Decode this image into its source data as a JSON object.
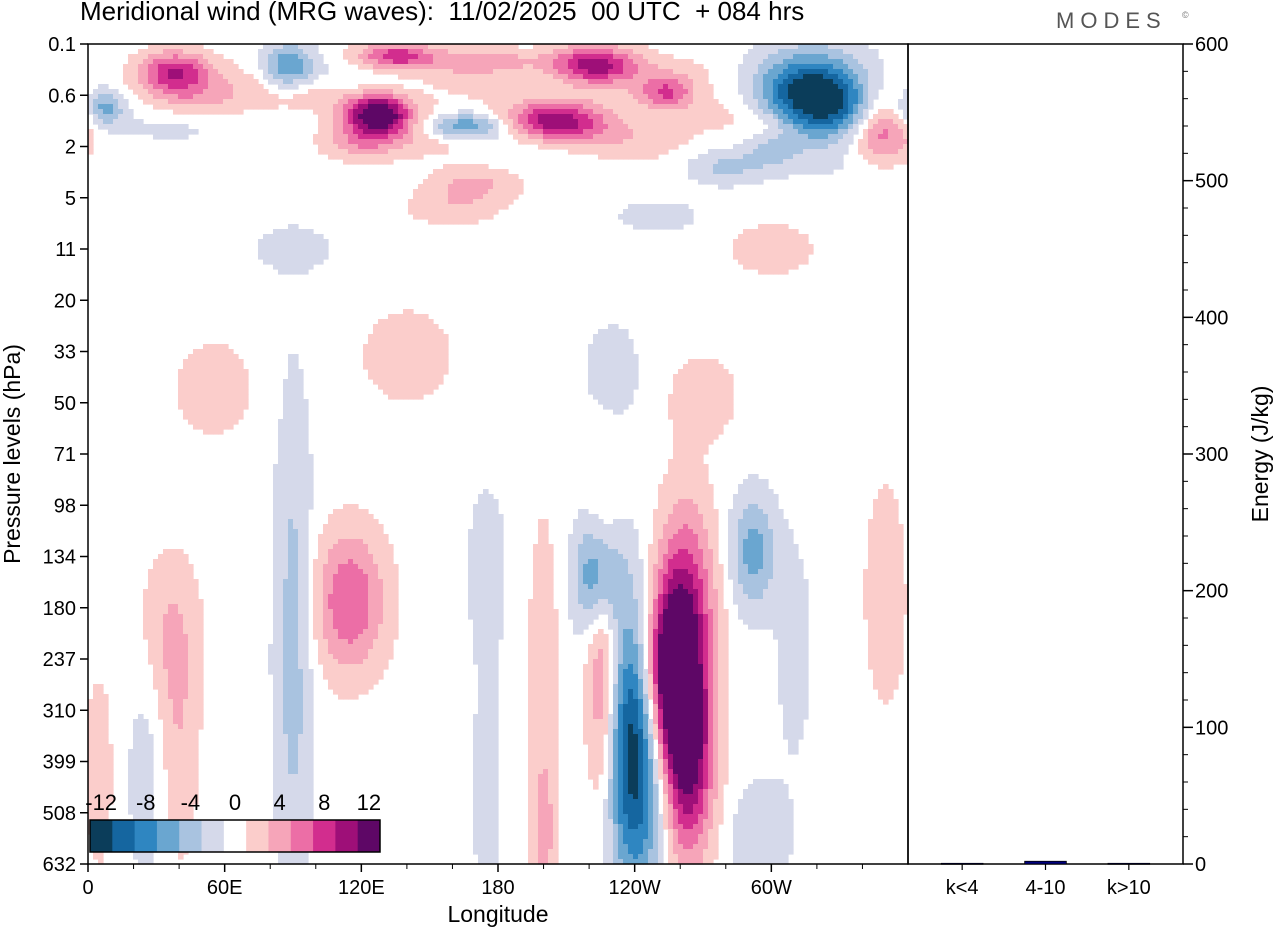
{
  "title": "Meridional wind (MRG waves):  11/02/2025  00 UTC  + 084 hrs",
  "brand": "MODES",
  "brand_mark": "©",
  "colors": {
    "scale": [
      "#0b3d5a",
      "#1566a0",
      "#2f86c1",
      "#6aa6d0",
      "#a9c3e0",
      "#d5d9ea",
      "#ffffff",
      "#fbcdcb",
      "#f6a5b9",
      "#ec6ea6",
      "#d22d8e",
      "#9e0f78",
      "#5e0766"
    ]
  },
  "chart_data": [
    {
      "type": "heatmap",
      "title": "Meridional wind (MRG waves):  11/02/2025  00 UTC  + 084 hrs",
      "xlabel": "Longitude",
      "ylabel": "Pressure levels (hPa)",
      "x_ticks": [
        "0",
        "60E",
        "120E",
        "180",
        "120W",
        "60W"
      ],
      "x_tick_lons": [
        0,
        60,
        120,
        180,
        240,
        300
      ],
      "x_range": [
        0,
        360
      ],
      "y_ticks": [
        "0.1",
        "0.6",
        "2",
        "5",
        "11",
        "20",
        "33",
        "50",
        "71",
        "98",
        "134",
        "180",
        "237",
        "310",
        "399",
        "508",
        "632"
      ],
      "colorbar": {
        "levels": [
          -12,
          -10,
          -8,
          -6,
          -4,
          -2,
          0,
          2,
          4,
          6,
          8,
          10,
          12
        ],
        "labels": [
          "-12",
          "-8",
          "-4",
          "0",
          "4",
          "8",
          "12"
        ]
      },
      "features": [
        {
          "lon": 240,
          "level": 0.86,
          "value": -13,
          "sx": 9,
          "sy": 0.12
        },
        {
          "lon": 263,
          "level": 0.86,
          "value": 13,
          "sx": 8,
          "sy": 0.09
        },
        {
          "lon": 262,
          "level": 0.69,
          "value": 9,
          "sx": 9,
          "sy": 0.09
        },
        {
          "lon": 253,
          "level": 0.77,
          "value": 11,
          "sx": 7,
          "sy": 0.07
        },
        {
          "lon": 226,
          "level": 0.76,
          "value": 7,
          "sx": 5,
          "sy": 0.13
        },
        {
          "lon": 224,
          "level": 0.65,
          "value": -9,
          "sx": 7,
          "sy": 0.05
        },
        {
          "lon": 292,
          "level": 0.62,
          "value": -6,
          "sx": 7,
          "sy": 0.05
        },
        {
          "lon": 115,
          "level": 0.68,
          "value": 7,
          "sx": 11,
          "sy": 0.06
        },
        {
          "lon": 90,
          "level": 0.73,
          "value": -4,
          "sx": 6,
          "sy": 0.22
        },
        {
          "lon": 175,
          "level": 0.64,
          "value": -2.5,
          "sx": 6,
          "sy": 0.07
        },
        {
          "lon": 200,
          "level": 0.78,
          "value": 2.5,
          "sx": 5,
          "sy": 0.15
        },
        {
          "lon": 200,
          "level": 0.97,
          "value": 3,
          "sx": 4,
          "sy": 0.06
        },
        {
          "lon": 295,
          "level": 0.97,
          "value": -3,
          "sx": 9,
          "sy": 0.05
        },
        {
          "lon": 310,
          "level": 0.74,
          "value": -2,
          "sx": 6,
          "sy": 0.1
        },
        {
          "lon": 350,
          "level": 0.67,
          "value": 3,
          "sx": 6,
          "sy": 0.09
        },
        {
          "lon": 35,
          "level": 0.72,
          "value": 3,
          "sx": 10,
          "sy": 0.07
        },
        {
          "lon": 40,
          "level": 0.86,
          "value": 2.5,
          "sx": 6,
          "sy": 0.1
        },
        {
          "lon": 25,
          "level": 0.88,
          "value": -2,
          "sx": 6,
          "sy": 0.12
        },
        {
          "lon": 5,
          "level": 0.89,
          "value": 2.5,
          "sx": 4,
          "sy": 0.08
        },
        {
          "lon": 175,
          "level": 0.91,
          "value": -2,
          "sx": 5,
          "sy": 0.12
        },
        {
          "lon": 140,
          "level": 0.38,
          "value": 2.5,
          "sx": 14,
          "sy": 0.04
        },
        {
          "lon": 270,
          "level": 0.43,
          "value": 2,
          "sx": 12,
          "sy": 0.04
        },
        {
          "lon": 230,
          "level": 0.4,
          "value": -2,
          "sx": 10,
          "sy": 0.05
        },
        {
          "lon": 55,
          "level": 0.42,
          "value": 1.8,
          "sx": 15,
          "sy": 0.05
        },
        {
          "lon": 120,
          "level": 0.12,
          "value": 4,
          "sx": 12,
          "sy": 0.015
        },
        {
          "lon": 100,
          "level": 0.06,
          "value": 2.5,
          "sx": 12,
          "sy": 0.015
        },
        {
          "lon": 45,
          "level": 0.07,
          "value": 2.5,
          "sx": 14,
          "sy": 0.015
        },
        {
          "lon": 175,
          "level": 0.02,
          "value": 3.5,
          "sx": 16,
          "sy": 0.01
        },
        {
          "lon": 260,
          "level": 0.06,
          "value": -3,
          "sx": 12,
          "sy": 0.015
        },
        {
          "lon": 300,
          "level": 0.1,
          "value": 2.5,
          "sx": 10,
          "sy": 0.015
        },
        {
          "lon": 280,
          "level": 0.15,
          "value": -3.5,
          "sx": 12,
          "sy": 0.015
        },
        {
          "lon": 170,
          "level": 0.17,
          "value": 3.5,
          "sx": 14,
          "sy": 0.015
        },
        {
          "lon": 90,
          "level": 0.25,
          "value": -2,
          "sx": 14,
          "sy": 0.02
        },
        {
          "lon": 160,
          "level": 0.2,
          "value": 2.5,
          "sx": 14,
          "sy": 0.015
        },
        {
          "lon": 250,
          "level": 0.21,
          "value": -2,
          "sx": 14,
          "sy": 0.015
        },
        {
          "lon": 300,
          "level": 0.25,
          "value": 3,
          "sx": 12,
          "sy": 0.02
        }
      ],
      "upper_features": [
        {
          "lon": 38,
          "level": 0.035,
          "value": 9,
          "sx": 11,
          "sy": 0.018
        },
        {
          "lon": 88,
          "level": 0.028,
          "value": -7,
          "sx": 8,
          "sy": 0.02
        },
        {
          "lon": 127,
          "level": 0.085,
          "value": 14,
          "sx": 10,
          "sy": 0.018
        },
        {
          "lon": 135,
          "level": 0.015,
          "value": 8,
          "sx": 12,
          "sy": 0.012
        },
        {
          "lon": 165,
          "level": 0.1,
          "value": -9,
          "sx": 13,
          "sy": 0.012
        },
        {
          "lon": 205,
          "level": 0.095,
          "value": 11,
          "sx": 15,
          "sy": 0.018
        },
        {
          "lon": 222,
          "level": 0.025,
          "value": 10,
          "sx": 13,
          "sy": 0.016
        },
        {
          "lon": 255,
          "level": 0.06,
          "value": 8,
          "sx": 9,
          "sy": 0.014
        },
        {
          "lon": 318,
          "level": 0.063,
          "value": -14,
          "sx": 17,
          "sy": 0.035
        },
        {
          "lon": 348,
          "level": 0.095,
          "value": 8,
          "sx": 9,
          "sy": 0.03
        },
        {
          "lon": 7,
          "level": 0.078,
          "value": -6,
          "sx": 6,
          "sy": 0.015
        },
        {
          "lon": 300,
          "level": 0.13,
          "value": -3,
          "sx": 8,
          "sy": 0.015
        }
      ],
      "ylim": [
        "0.1",
        "632"
      ]
    },
    {
      "type": "bar",
      "categories": [
        "k<4",
        "4-10",
        "k>10"
      ],
      "values": [
        0.5,
        2,
        0.5
      ],
      "ylabel": "Energy (J/kg)",
      "ylim": [
        0,
        600
      ],
      "y_ticks": [
        0,
        100,
        200,
        300,
        400,
        500,
        600
      ],
      "bar_color": "#000080"
    }
  ]
}
